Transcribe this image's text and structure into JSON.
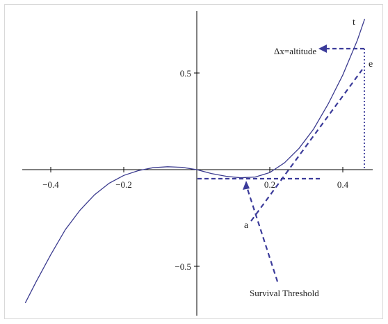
{
  "chart_data": {
    "type": "line",
    "title": "",
    "xlabel": "",
    "ylabel": "",
    "xlim": [
      -0.48,
      0.48
    ],
    "ylim": [
      -0.72,
      0.82
    ],
    "grid": false,
    "x_ticks": [
      -0.4,
      -0.2,
      0.2,
      0.4
    ],
    "x_tick_labels": [
      "−0.4",
      "−0.2",
      "0.2",
      "0.4"
    ],
    "y_ticks": [
      0.5,
      -0.5
    ],
    "y_tick_labels": [
      "0.5",
      "−0.5"
    ],
    "series": [
      {
        "x": [
          -0.47,
          -0.44,
          -0.4,
          -0.36,
          -0.32,
          -0.28,
          -0.24,
          -0.2,
          -0.16,
          -0.12,
          -0.08,
          -0.04,
          0.0,
          0.04,
          0.08,
          0.12,
          0.16,
          0.2,
          0.24,
          0.28,
          0.32,
          0.36,
          0.4,
          0.44,
          0.46
        ],
        "y": [
          -0.69,
          -0.58,
          -0.44,
          -0.31,
          -0.21,
          -0.13,
          -0.07,
          -0.03,
          -0.005,
          0.01,
          0.015,
          0.012,
          0.0,
          -0.02,
          -0.034,
          -0.042,
          -0.038,
          -0.015,
          0.035,
          0.11,
          0.21,
          0.34,
          0.49,
          0.67,
          0.78
        ],
        "color": "#3b3b8f"
      }
    ],
    "annotations": {
      "t_label": "t",
      "e_label": "e",
      "a_label": "a",
      "altitude_label": "Δx=altitude",
      "threshold_label": "Survival Threshold",
      "dash_color": "#3b3b9a"
    }
  }
}
